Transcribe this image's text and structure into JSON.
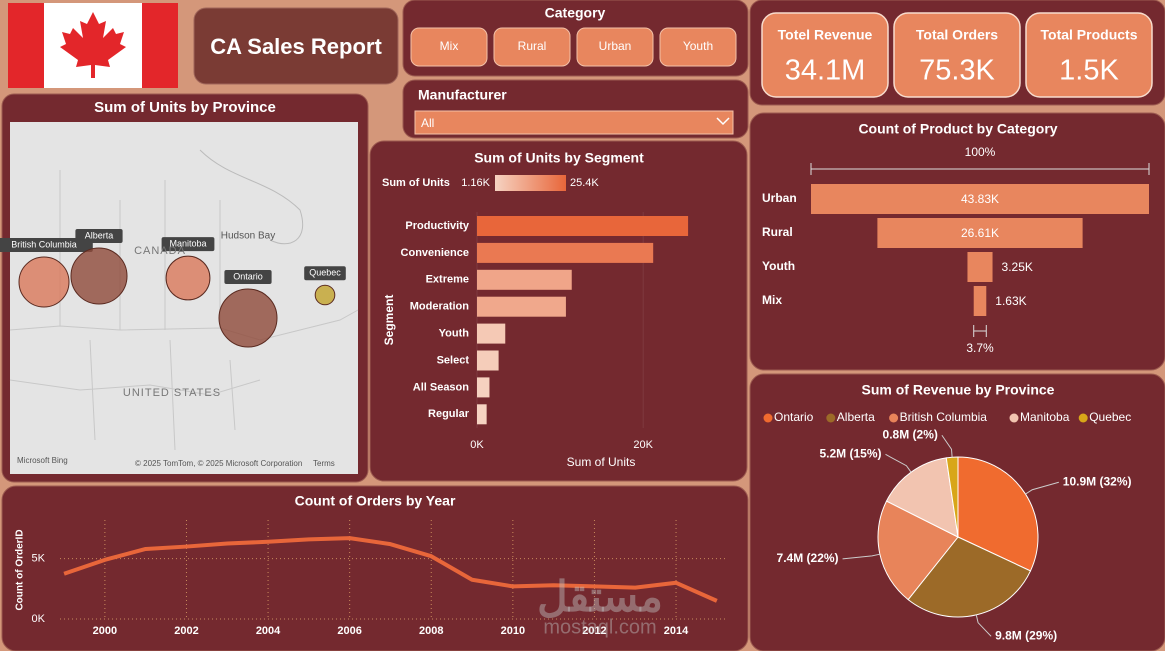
{
  "header": {
    "title": "CA Sales Report"
  },
  "slicers": {
    "category": {
      "title": "Category",
      "options": [
        "Mix",
        "Rural",
        "Urban",
        "Youth"
      ]
    },
    "manufacturer": {
      "title": "Manufacturer",
      "selected": "All"
    }
  },
  "kpis": [
    {
      "label": "Totel Revenue",
      "value": "34.1M"
    },
    {
      "label": "Total Orders",
      "value": "75.3K"
    },
    {
      "label": "Total Products",
      "value": "1.5K"
    }
  ],
  "watermark": [
    "مستقل",
    "mostaql.com"
  ],
  "chart_data": [
    {
      "type": "map",
      "title": "Sum of Units by Province",
      "categories": [
        "British Columbia",
        "Alberta",
        "Manitoba",
        "Ontario",
        "Quebec"
      ],
      "values": [
        7800,
        9800,
        6000,
        10500,
        1200
      ],
      "colors": [
        "#d9785a",
        "#8e4a3a",
        "#d9785a",
        "#8e4a3a",
        "#c2a22a"
      ],
      "annotations": [
        "CANADA",
        "Hudson Bay",
        "UNITED STATES",
        "Microsoft Bing",
        "© 2025 TomTom, © 2025 Microsoft Corporation",
        "Terms"
      ]
    },
    {
      "type": "bar",
      "orientation": "horizontal",
      "title": "Sum of Units by Segment",
      "x_label": "Sum of Units",
      "y_label": "Segment",
      "categories": [
        "Productivity",
        "Convenience",
        "Extreme",
        "Moderation",
        "Youth",
        "Select",
        "All Season",
        "Regular"
      ],
      "values": [
        25400,
        21200,
        11400,
        10700,
        3400,
        2600,
        1500,
        1160
      ],
      "color_scale": {
        "label": "Sum of Units",
        "min": {
          "value": 1160,
          "label": "1.16K"
        },
        "max": {
          "value": 25400,
          "label": "25.4K"
        },
        "colors": [
          "#f6d3c2",
          "#e8663a"
        ]
      },
      "xlim": [
        0,
        29000
      ],
      "xticks": [
        {
          "value": 0,
          "label": "0K"
        },
        {
          "value": 20000,
          "label": "20K"
        }
      ]
    },
    {
      "type": "funnel",
      "title": "Count of Product by Category",
      "categories": [
        "Urban",
        "Rural",
        "Youth",
        "Mix"
      ],
      "values": [
        43830,
        26610,
        3250,
        1630
      ],
      "value_labels": [
        "43.83K",
        "26.61K",
        "3.25K",
        "1.63K"
      ],
      "top_label": "100%",
      "bottom_label": "3.7%",
      "color": "#e8865e"
    },
    {
      "type": "pie",
      "title": "Sum of Revenue by Province",
      "legend": "top",
      "categories": [
        "Ontario",
        "Alberta",
        "British Columbia",
        "Manitoba",
        "Quebec"
      ],
      "values": [
        10.9,
        9.8,
        7.4,
        5.2,
        0.8
      ],
      "value_labels": [
        "10.9M (32%)",
        "9.8M (29%)",
        "7.4M (22%)",
        "5.2M (15%)",
        "0.8M (2%)"
      ],
      "colors": [
        "#f06b2f",
        "#9c6a28",
        "#e8845a",
        "#f2c4b0",
        "#d8a619"
      ]
    },
    {
      "type": "line",
      "title": "Count of Orders by Year",
      "y_label": "Count of OrderID",
      "x": [
        1999,
        2000,
        2001,
        2002,
        2003,
        2004,
        2005,
        2006,
        2007,
        2008,
        2009,
        2010,
        2011,
        2012,
        2013,
        2014,
        2015
      ],
      "values": [
        3750,
        4900,
        5800,
        6000,
        6250,
        6400,
        6600,
        6700,
        6200,
        5200,
        3250,
        2700,
        2800,
        2700,
        2600,
        3000,
        1500
      ],
      "color": "#e8663a",
      "xlim": [
        1998.9,
        2015.2
      ],
      "ylim": [
        0,
        8200
      ],
      "xticks": [
        2000,
        2002,
        2004,
        2006,
        2008,
        2010,
        2012,
        2014
      ],
      "yticks": [
        {
          "value": 0,
          "label": "0K"
        },
        {
          "value": 5000,
          "label": "5K"
        }
      ],
      "grid": true
    }
  ]
}
